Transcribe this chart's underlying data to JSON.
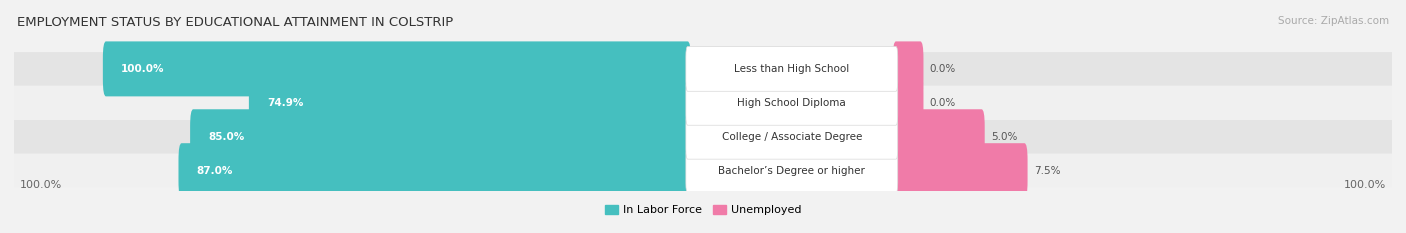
{
  "title": "EMPLOYMENT STATUS BY EDUCATIONAL ATTAINMENT IN COLSTRIP",
  "source": "Source: ZipAtlas.com",
  "categories": [
    "Less than High School",
    "High School Diploma",
    "College / Associate Degree",
    "Bachelor’s Degree or higher"
  ],
  "labor_force_pct": [
    100.0,
    74.9,
    85.0,
    87.0
  ],
  "unemployed_pct": [
    0.0,
    0.0,
    5.0,
    7.5
  ],
  "labor_force_color": "#45bfbf",
  "unemployed_color": "#f07ba8",
  "row_bg_even": "#f0f0f0",
  "row_bg_odd": "#e4e4e4",
  "label_box_color": "#ffffff",
  "label_box_border": "#d8d8d8",
  "legend_labor": "In Labor Force",
  "legend_unemployed": "Unemployed",
  "x_left_label": "100.0%",
  "x_right_label": "100.0%",
  "title_fontsize": 9.5,
  "source_fontsize": 7.5,
  "bar_label_fontsize": 7.5,
  "category_fontsize": 7.5,
  "axis_label_fontsize": 8,
  "legend_fontsize": 8
}
